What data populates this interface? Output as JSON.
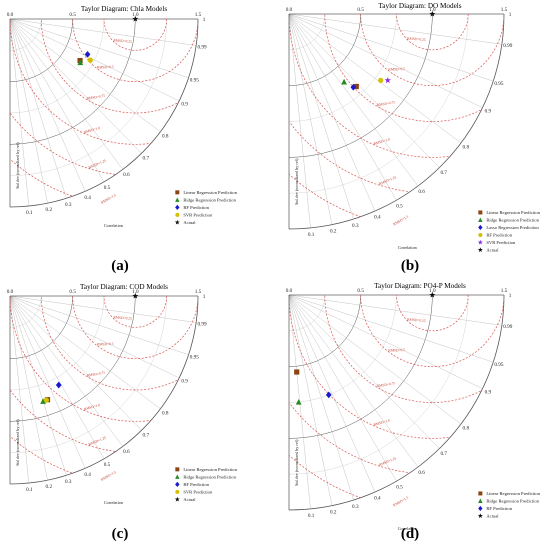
{
  "panels": [
    {
      "caption": "(a)",
      "chart_data": {
        "type": "scatter",
        "title": "Taylor Diagram: Chla Models",
        "xlabel": "Correlation",
        "ylabel": "Std dev (normalized by ref)",
        "std_ticks": [
          "0.0",
          "0.5",
          "1.0",
          "1.5"
        ],
        "corr_ticks": [
          "0.1",
          "0.2",
          "0.3",
          "0.4",
          "0.5",
          "0.6",
          "0.7",
          "0.8",
          "0.9",
          "0.95",
          "0.99",
          "1"
        ],
        "rmsd_labels": [
          "RMSD=0.25",
          "RMSD=0.5",
          "RMSD=0.75",
          "RMSD=1.0",
          "RMSD=1.25",
          "RMSD=1.5"
        ],
        "series": [
          {
            "name": "Linear Regression Prediction",
            "marker": "square",
            "color": "#8b4513",
            "std": 0.65,
            "corr": 0.86
          },
          {
            "name": "Ridge Regression Prediction",
            "marker": "triangle",
            "color": "#228b22",
            "std": 0.66,
            "corr": 0.85
          },
          {
            "name": "RF Prediction",
            "marker": "diamond",
            "color": "#1a1acd",
            "std": 0.68,
            "corr": 0.91
          },
          {
            "name": "SVR Prediction",
            "marker": "circle",
            "color": "#d4c000",
            "std": 0.72,
            "corr": 0.89
          },
          {
            "name": "Actual",
            "marker": "star",
            "color": "#111111",
            "std": 1.0,
            "corr": 1.0
          }
        ]
      }
    },
    {
      "caption": "(b)",
      "chart_data": {
        "type": "scatter",
        "title": "Taylor Diagram: DO Models",
        "xlabel": "Correlation",
        "ylabel": "Std dev (normalized by ref)",
        "std_ticks": [
          "0.0",
          "0.5",
          "1.0",
          "1.5"
        ],
        "corr_ticks": [
          "0.1",
          "0.2",
          "0.3",
          "0.4",
          "0.5",
          "0.6",
          "0.7",
          "0.8",
          "0.9",
          "0.95",
          "0.99",
          "1"
        ],
        "rmsd_labels": [
          "RMSD=0.25",
          "RMSD=0.5",
          "RMSD=0.75",
          "RMSD=1.0",
          "RMSD=1.25",
          "RMSD=1.5"
        ],
        "series": [
          {
            "name": "Linear Regression Prediction",
            "marker": "square",
            "color": "#8b4513",
            "std": 0.69,
            "corr": 0.68
          },
          {
            "name": "Ridge Regression Prediction",
            "marker": "triangle",
            "color": "#228b22",
            "std": 0.61,
            "corr": 0.63
          },
          {
            "name": "Lasso Regression Prediction",
            "marker": "diamond",
            "color": "#1a1acd",
            "std": 0.68,
            "corr": 0.66
          },
          {
            "name": "RF Prediction",
            "marker": "circle",
            "color": "#d4c000",
            "std": 0.79,
            "corr": 0.81
          },
          {
            "name": "SVR Prediction",
            "marker": "star",
            "color": "#8b2be2",
            "std": 0.83,
            "corr": 0.83
          },
          {
            "name": "Actual",
            "marker": "star",
            "color": "#111111",
            "std": 1.0,
            "corr": 1.0
          }
        ]
      }
    },
    {
      "caption": "(c)",
      "chart_data": {
        "type": "scatter",
        "title": "Taylor Diagram: COD Models",
        "xlabel": "Correlation",
        "ylabel": "Std dev (normalized by ref)",
        "std_ticks": [
          "0.0",
          "0.5",
          "1.0",
          "1.5"
        ],
        "corr_ticks": [
          "0.1",
          "0.2",
          "0.3",
          "0.4",
          "0.5",
          "0.6",
          "0.7",
          "0.8",
          "0.9",
          "0.95",
          "0.99",
          "1"
        ],
        "rmsd_labels": [
          "RMSD=0.25",
          "RMSD=0.5",
          "RMSD=0.75",
          "RMSD=1.0",
          "RMSD=1.25",
          "RMSD=1.5"
        ],
        "series": [
          {
            "name": "Linear Regression Prediction",
            "marker": "square",
            "color": "#8b4513",
            "std": 0.88,
            "corr": 0.34
          },
          {
            "name": "Ridge Regression Prediction",
            "marker": "triangle",
            "color": "#228b22",
            "std": 0.88,
            "corr": 0.3
          },
          {
            "name": "RF Prediction",
            "marker": "diamond",
            "color": "#1a1acd",
            "std": 0.81,
            "corr": 0.48
          },
          {
            "name": "SVR Prediction",
            "marker": "circle",
            "color": "#d4c000",
            "std": 0.88,
            "corr": 0.33
          },
          {
            "name": "Actual",
            "marker": "star",
            "color": "#111111",
            "std": 1.0,
            "corr": 1.0
          }
        ]
      }
    },
    {
      "caption": "(d)",
      "chart_data": {
        "type": "scatter",
        "title": "Taylor Diagram: PO4-P Models",
        "xlabel": "Correlation",
        "ylabel": "Std dev (normalized by ref)",
        "std_ticks": [
          "0.0",
          "0.5",
          "1.0",
          "1.5"
        ],
        "corr_ticks": [
          "0.1",
          "0.2",
          "0.3",
          "0.4",
          "0.5",
          "0.6",
          "0.7",
          "0.8",
          "0.9",
          "0.95",
          "0.99",
          "1"
        ],
        "rmsd_labels": [
          "RMSD=0.25",
          "RMSD=0.5",
          "RMSD=0.75",
          "RMSD=1.0",
          "RMSD=1.25",
          "RMSD=1.5"
        ],
        "series": [
          {
            "name": "Linear Regression Prediction",
            "marker": "square",
            "color": "#8b4513",
            "std": 0.54,
            "corr": 0.1
          },
          {
            "name": "Ridge Regression Prediction",
            "marker": "triangle",
            "color": "#228b22",
            "std": 0.75,
            "corr": 0.09
          },
          {
            "name": "RF Prediction",
            "marker": "diamond",
            "color": "#1a1acd",
            "std": 0.75,
            "corr": 0.37
          },
          {
            "name": "Actual",
            "marker": "star",
            "color": "#111111",
            "std": 1.0,
            "corr": 1.0
          }
        ]
      }
    }
  ]
}
